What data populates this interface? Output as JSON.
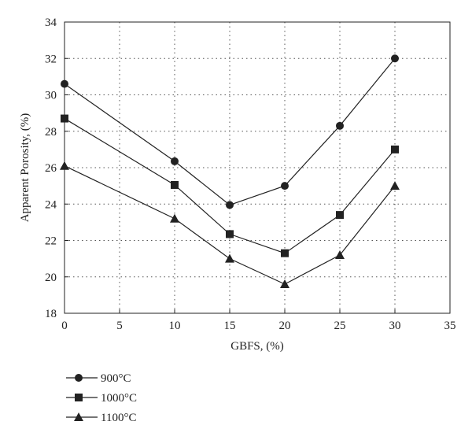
{
  "chart_data": {
    "type": "line",
    "xlabel": "GBFS, (%)",
    "ylabel": "Apparent Porosity, (%)",
    "xlim": [
      0,
      35
    ],
    "ylim": [
      18,
      34
    ],
    "xticks": [
      "0",
      "5",
      "10",
      "15",
      "20",
      "25",
      "30",
      "35"
    ],
    "yticks": [
      "18",
      "20",
      "22",
      "24",
      "26",
      "28",
      "30",
      "32",
      "34"
    ],
    "grid": true,
    "legend_position": "bottom-left",
    "x": [
      0,
      10,
      15,
      20,
      25,
      30
    ],
    "series": [
      {
        "name": "900°C",
        "marker": "circle",
        "values": [
          30.6,
          26.35,
          23.95,
          25.0,
          28.3,
          32.0
        ]
      },
      {
        "name": "1000°C",
        "marker": "square",
        "values": [
          28.7,
          25.05,
          22.35,
          21.3,
          23.4,
          27.0
        ]
      },
      {
        "name": "1100°C",
        "marker": "triangle",
        "values": [
          26.1,
          23.2,
          21.0,
          19.6,
          21.2,
          25.0
        ]
      }
    ],
    "colors": {
      "line": "#222222",
      "grid": "#555555"
    }
  }
}
